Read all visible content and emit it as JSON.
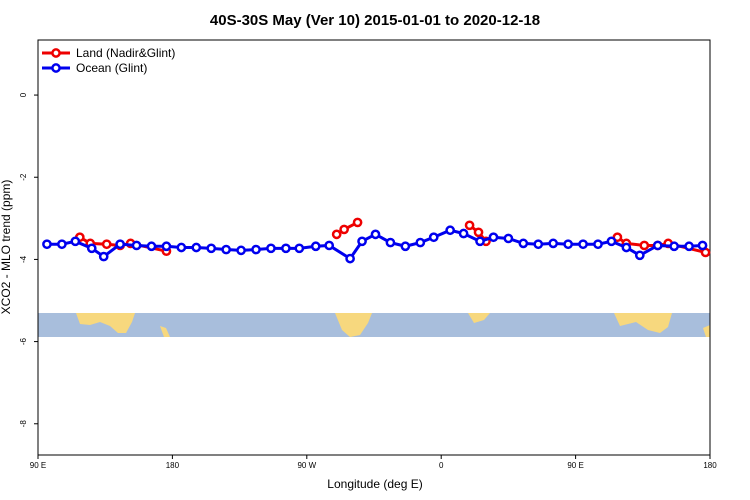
{
  "chart_data": {
    "type": "line",
    "title": "40S-30S May (Ver 10)   2015-01-01 to 2020-12-18",
    "xlabel": "Longitude (deg E)",
    "ylabel": "XCO2 - MLO trend (ppm)",
    "xlim": [
      90,
      540
    ],
    "ylim": [
      -8.76,
      1.34
    ],
    "xticks": [
      {
        "value": 90,
        "label": "90 E"
      },
      {
        "value": 180,
        "label": "180"
      },
      {
        "value": 270,
        "label": "90 W"
      },
      {
        "value": 360,
        "label": "0"
      },
      {
        "value": 450,
        "label": "90 E"
      },
      {
        "value": 540,
        "label": "180"
      }
    ],
    "yticks": [
      0,
      -2,
      -4,
      -6,
      -8
    ],
    "legend": "top-left",
    "series": [
      {
        "name": "Land (Nadir&Glint)",
        "color": "#ee0000",
        "x": [
          118,
          125,
          136,
          145,
          152,
          176,
          230,
          290,
          295,
          304,
          340,
          379,
          385,
          390,
          440,
          478,
          484,
          496,
          505,
          512,
          537
        ],
        "values": [
          -3.46,
          -3.61,
          -3.63,
          -3.66,
          -3.61,
          -3.8,
          null,
          -3.39,
          -3.27,
          -3.1,
          null,
          -3.17,
          -3.34,
          -3.56,
          null,
          -3.46,
          -3.61,
          -3.66,
          -3.66,
          -3.61,
          -3.83
        ]
      },
      {
        "name": "Ocean (Glint)",
        "color": "#0000ee",
        "x": [
          96,
          106,
          115,
          126,
          134,
          145,
          156,
          166,
          176,
          186,
          196,
          206,
          216,
          226,
          236,
          246,
          256,
          265,
          276,
          285,
          299,
          307,
          316,
          326,
          336,
          346,
          355,
          366,
          375,
          386,
          395,
          405,
          415,
          425,
          435,
          445,
          455,
          465,
          474,
          484,
          493,
          505,
          516,
          526,
          535
        ],
        "values": [
          -3.63,
          -3.63,
          -3.56,
          -3.73,
          -3.93,
          -3.63,
          -3.66,
          -3.68,
          -3.68,
          -3.71,
          -3.71,
          -3.73,
          -3.76,
          -3.78,
          -3.76,
          -3.73,
          -3.73,
          -3.73,
          -3.68,
          -3.66,
          -3.98,
          -3.56,
          -3.39,
          -3.59,
          -3.68,
          -3.59,
          -3.46,
          -3.29,
          -3.37,
          -3.56,
          -3.46,
          -3.49,
          -3.61,
          -3.63,
          -3.61,
          -3.63,
          -3.63,
          -3.63,
          -3.56,
          -3.71,
          -3.9,
          -3.66,
          -3.68,
          -3.68,
          -3.66
        ]
      }
    ]
  }
}
